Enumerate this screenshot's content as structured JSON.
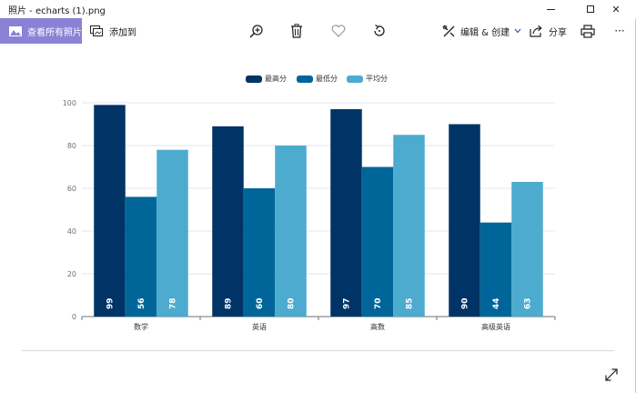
{
  "window": {
    "title": "照片 - echarts (1).png",
    "controls": {
      "minimize": "minimize",
      "maximize": "maximize",
      "close": "✕"
    }
  },
  "toolbar": {
    "view_all_label": "查看所有照片",
    "add_to_label": "添加到",
    "edit_create_label": "编辑 & 创建",
    "share_label": "分享",
    "more_label": "···"
  },
  "chart_data": {
    "type": "bar",
    "categories": [
      "数学",
      "英语",
      "高数",
      "高级英语"
    ],
    "series": [
      {
        "name": "最高分",
        "values": [
          99,
          89,
          97,
          90
        ],
        "color": "#003366"
      },
      {
        "name": "最低分",
        "values": [
          56,
          60,
          70,
          44
        ],
        "color": "#006699"
      },
      {
        "name": "平均分",
        "values": [
          78,
          80,
          85,
          63
        ],
        "color": "#4cabce"
      }
    ],
    "ylim": [
      0,
      100
    ],
    "yticks": [
      0,
      20,
      40,
      60,
      80,
      100
    ],
    "legend_position": "top-center",
    "grid": true
  }
}
